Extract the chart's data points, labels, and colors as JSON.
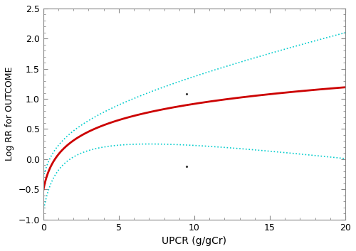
{
  "xlim": [
    0,
    20
  ],
  "ylim": [
    -1.0,
    2.5
  ],
  "xticks": [
    0,
    5,
    10,
    15,
    20
  ],
  "yticks": [
    -1.0,
    -0.5,
    0.0,
    0.5,
    1.0,
    1.5,
    2.0,
    2.5
  ],
  "xlabel": "UPCR (g/gCr)",
  "ylabel": "Log RR for OUTCOME",
  "fit_color": "#CC0000",
  "ci_color": "#00CCCC",
  "bg_color": "#FFFFFF",
  "fit_lw": 2.0,
  "ci_lw": 1.2,
  "scatter_points": [
    [
      9.5,
      1.08
    ],
    [
      9.5,
      -0.12
    ]
  ],
  "scatter_color": "#333333",
  "scatter_size": 2.5,
  "a_fit": 0.405,
  "b_fit": 0.3,
  "c_fit": -0.026,
  "a_upper": 0.3346,
  "c_upper": 0.092,
  "d_upper": 0.05,
  "a_lower": 0.8116,
  "c_lower": 0.1917,
  "f_lower": 0.587
}
